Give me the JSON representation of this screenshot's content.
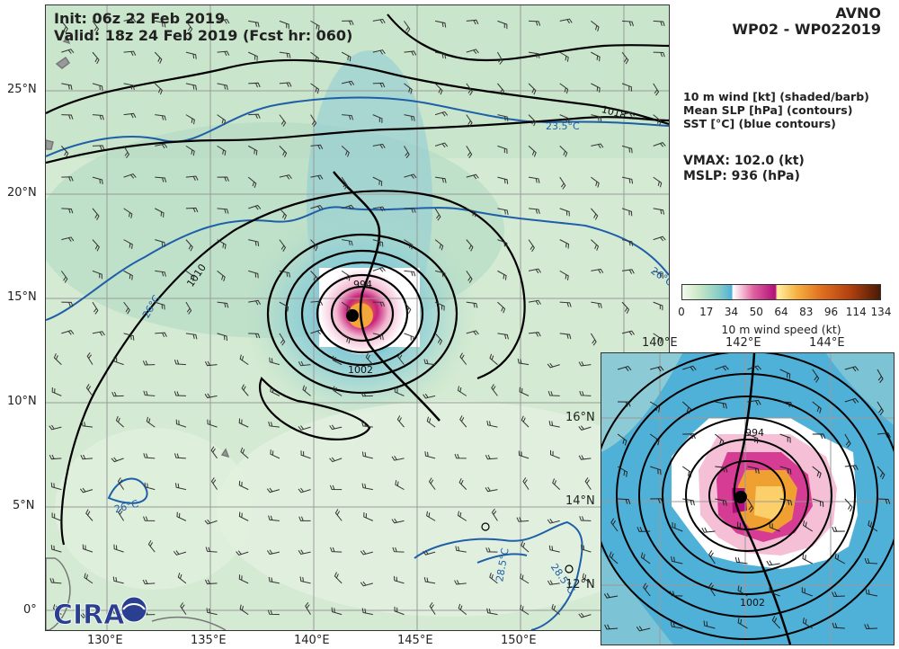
{
  "header": {
    "init_line": "Init:  06z 22 Feb 2019",
    "valid_line": "Valid: 18z 24 Feb 2019 (Fcst hr: 060)",
    "model": "AVNO",
    "storm_id": "WP02 - WP022019"
  },
  "legend": {
    "line1": "10 m wind [kt] (shaded/barb)",
    "line2": "Mean SLP [hPa] (contours)",
    "line3": "SST [°C] (blue contours)"
  },
  "stats": {
    "vmax": "VMAX: 102.0 (kt)",
    "mslp": "MSLP:  936 (hPa)"
  },
  "colorbar": {
    "ticks": [
      "0",
      "17",
      "34",
      "50",
      "64",
      "83",
      "96",
      "114",
      "134"
    ],
    "label": "10 m wind speed (kt)"
  },
  "main_map": {
    "lat_labels": [
      "25°N",
      "20°N",
      "15°N",
      "10°N",
      "5°N",
      "0°"
    ],
    "lon_labels": [
      "130°E",
      "135°E",
      "140°E",
      "145°E",
      "150°E"
    ],
    "slp_labels": [
      "1018",
      "1010",
      "1002",
      "994"
    ],
    "sst_labels": [
      "23.5°C",
      "26°C",
      "26°C",
      "26°C",
      "28.5°C",
      "28.5°C"
    ],
    "logo_text": "CIRA"
  },
  "inset_map": {
    "lat_labels": [
      "16°N",
      "14°N",
      "12°N"
    ],
    "lon_labels": [
      "140°E",
      "142°E",
      "144°E"
    ],
    "slp_labels": [
      "994",
      "1002"
    ]
  },
  "colors": {
    "sst_contour": "#1f5fa8",
    "slp_contour": "#000000",
    "grid": "#9a9a9a"
  }
}
